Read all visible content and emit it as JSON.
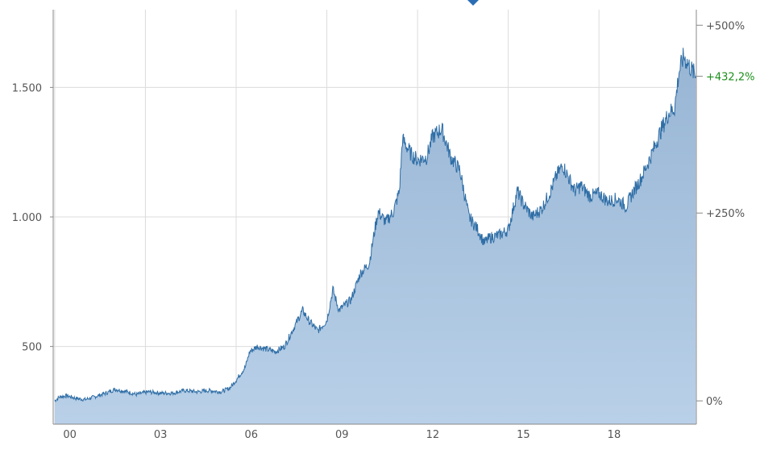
{
  "chart_data": {
    "type": "area",
    "x_tick_labels": [
      "00",
      "03",
      "06",
      "09",
      "12",
      "15",
      "18"
    ],
    "x_tick_years": [
      2000,
      2003,
      2006,
      2009,
      2012,
      2015,
      2018
    ],
    "xlim": [
      1999.45,
      2020.72
    ],
    "y_left_ticks": [
      500,
      1000,
      1500
    ],
    "y_left_tick_labels": [
      "500",
      "1.000",
      "1.500"
    ],
    "ylim": [
      200,
      1800
    ],
    "y_right_ticks": [
      {
        "value": 290,
        "label": "0%"
      },
      {
        "value": 1015,
        "label": "+250%"
      },
      {
        "value": 1740,
        "label": "+500%"
      }
    ],
    "current_marker": {
      "value": 1543,
      "label": "+432,2%",
      "color": "#1a8f1a"
    },
    "grid": true,
    "series": [
      {
        "x": [
          1999.5,
          1999.65,
          1999.9,
          2000.2,
          2000.5,
          2000.8,
          2001.2,
          2001.5,
          2001.9,
          2002.2,
          2002.6,
          2003.0,
          2003.4,
          2003.8,
          2004.2,
          2004.6,
          2005.0,
          2005.3,
          2005.5,
          2005.8,
          2005.95,
          2006.2,
          2006.5,
          2006.8,
          2007.1,
          2007.4,
          2007.7,
          2007.9,
          2008.2,
          2008.5,
          2008.7,
          2008.9,
          2009.1,
          2009.3,
          2009.6,
          2009.9,
          2010.1,
          2010.2,
          2010.45,
          2010.7,
          2010.9,
          2011.0,
          2011.15,
          2011.3,
          2011.5,
          2011.8,
          2012.0,
          2012.3,
          2012.6,
          2012.9,
          2013.2,
          2013.5,
          2013.7,
          2013.9,
          2014.2,
          2014.5,
          2014.8,
          2015.0,
          2015.3,
          2015.6,
          2015.9,
          2016.1,
          2016.3,
          2016.5,
          2016.7,
          2016.9,
          2017.2,
          2017.5,
          2017.8,
          2018.1,
          2018.4,
          2018.6,
          2018.9,
          2019.2,
          2019.5,
          2019.8,
          2020.0,
          2020.15,
          2020.3,
          2020.5,
          2020.7
        ],
        "values": [
          290,
          305,
          310,
          300,
          295,
          305,
          320,
          335,
          325,
          315,
          325,
          320,
          320,
          330,
          325,
          330,
          325,
          340,
          370,
          420,
          480,
          500,
          490,
          480,
          500,
          570,
          640,
          600,
          560,
          600,
          720,
          640,
          660,
          680,
          780,
          820,
          960,
          1020,
          980,
          1020,
          1100,
          1300,
          1270,
          1240,
          1220,
          1230,
          1310,
          1340,
          1230,
          1180,
          1000,
          950,
          900,
          920,
          930,
          950,
          1100,
          1050,
          1000,
          1030,
          1100,
          1160,
          1200,
          1150,
          1100,
          1120,
          1080,
          1090,
          1060,
          1070,
          1040,
          1090,
          1150,
          1230,
          1320,
          1400,
          1420,
          1560,
          1620,
          1580,
          1543
        ]
      }
    ]
  },
  "colors": {
    "line": "#2f6ea6",
    "fill_top": "#97b5d4",
    "fill_bottom": "#b9d0e8",
    "grid": "#dcdcdc",
    "axis": "#888888",
    "marker": "#2a6db5"
  }
}
